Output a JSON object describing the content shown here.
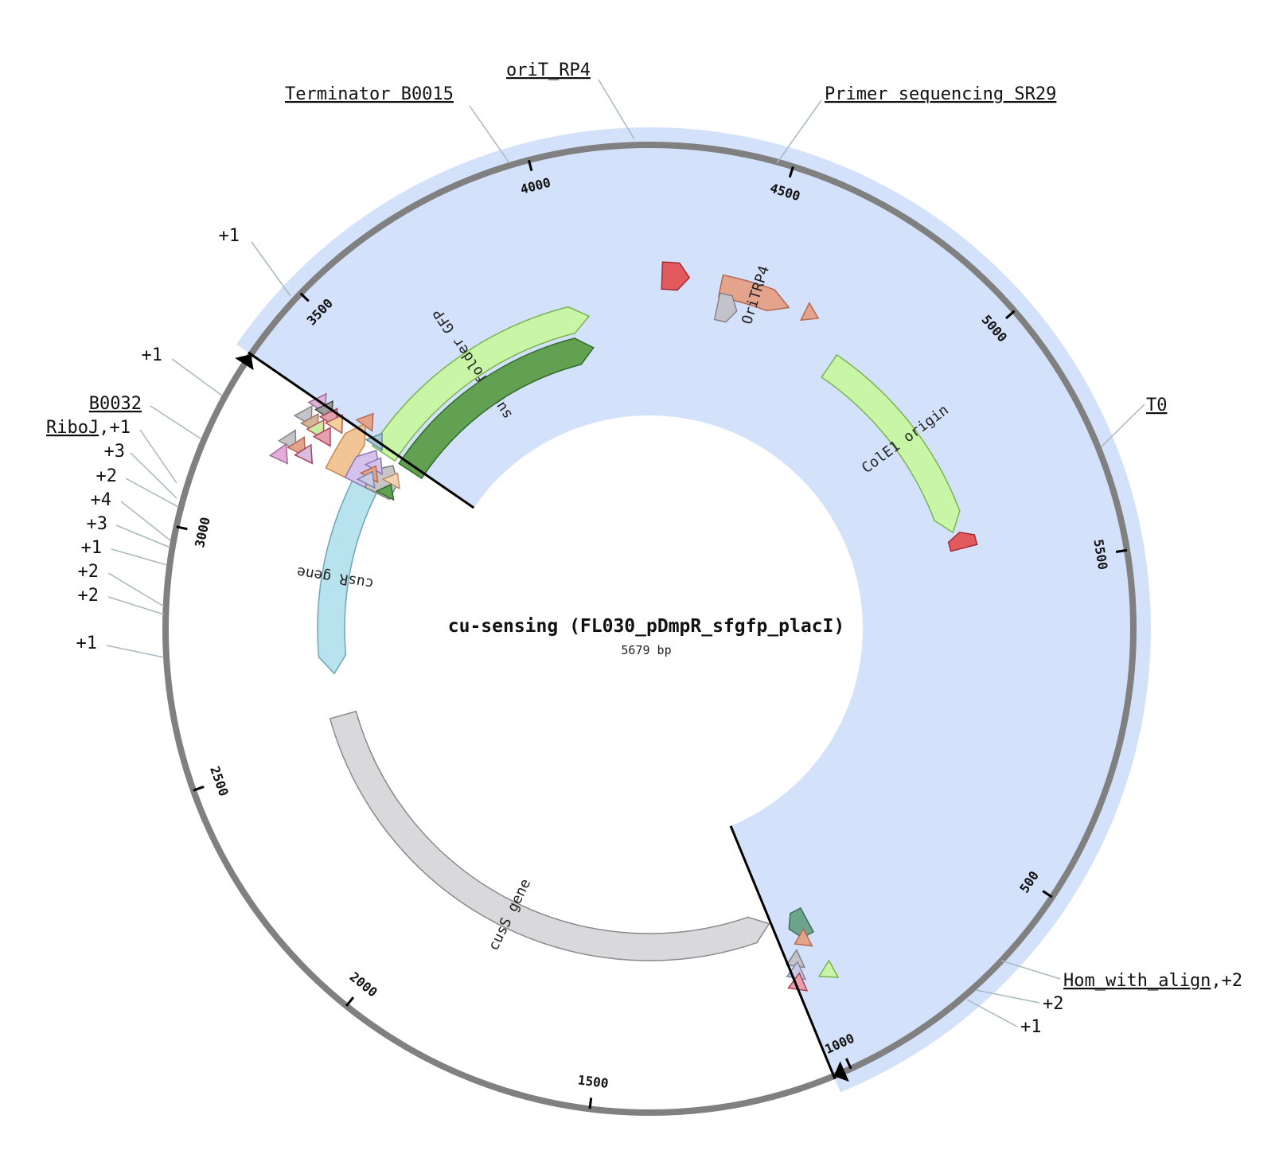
{
  "title": "cu-sensing (FL030_pDmpR_sfgfp_placI)",
  "length_label": "5679 bp",
  "seq_length": 5679,
  "colors": {
    "backbone": "#808080",
    "selection": "#d4e1fa",
    "leader": "#a8b8bd",
    "cut": "#000000"
  },
  "selection": {
    "start": 3353,
    "end": 1035
  },
  "cut_sites": [
    {
      "name": "cut-start",
      "pos": 3353
    },
    {
      "name": "cut-end",
      "pos": 1035
    }
  ],
  "ticks": [
    500,
    1000,
    1500,
    2000,
    2500,
    3000,
    3500,
    4000,
    4500,
    5000,
    5500
  ],
  "features": [
    {
      "name": "cusS gene",
      "start": 1040,
      "end": 2560,
      "track": 1,
      "color": "#d9d9dc",
      "stroke": "#8a8a8e",
      "dir": -1,
      "label": "cusS gene"
    },
    {
      "name": "cusR gene",
      "start": 2680,
      "end": 3225,
      "track": 1,
      "color": "#b8e2ee",
      "stroke": "#6aa7b8",
      "dir": -1,
      "label": "cusR gene"
    },
    {
      "name": "superfolder GFP",
      "start": 3335,
      "end": 4055,
      "track": 1,
      "color": "#c9f6a6",
      "stroke": "#79b454",
      "dir": 1,
      "label": "superfolder GFP"
    },
    {
      "name": "ColE1 origin",
      "start": 4770,
      "end": 5370,
      "track": 1,
      "color": "#c9f6a6",
      "stroke": "#79b454",
      "dir": 1,
      "label": "ColE1 origin"
    },
    {
      "name": "OriTRP4",
      "start": 4413,
      "end": 4598,
      "track": 2,
      "color": "#e4a48c",
      "stroke": "#b46a52",
      "dir": 1,
      "label": "OriTRP4"
    },
    {
      "name": "green block",
      "start": 3335,
      "end": 4050,
      "track": 0,
      "color": "#62a052",
      "stroke": "#2f6b2a",
      "dir": 1,
      "label": ""
    },
    {
      "name": "orange feature",
      "start": 3225,
      "end": 3375,
      "track": 2,
      "color": "#f2c597",
      "stroke": "#c58a4e",
      "dir": 1,
      "label": ""
    },
    {
      "name": "lavender feature",
      "start": 3225,
      "end": 3330,
      "track": 1.25,
      "color": "#d4c2ec",
      "stroke": "#8f76b5",
      "dir": 1,
      "label": ""
    },
    {
      "name": "grey feature",
      "start": 3225,
      "end": 3320,
      "track": 0.55,
      "color": "#c8c5c6",
      "stroke": "#7e7b7c",
      "dir": 1,
      "label": ""
    },
    {
      "name": "red feature left",
      "start": 4260,
      "end": 4330,
      "track": 2.1,
      "color": "#e35a5e",
      "stroke": "#a12a2f",
      "dir": 1,
      "label": ""
    },
    {
      "name": "red feature right",
      "start": 5375,
      "end": 5420,
      "track": 1.2,
      "color": "#e35a5e",
      "stroke": "#a12a2f",
      "dir": -1,
      "label": ""
    },
    {
      "name": "grey small top",
      "start": 4415,
      "end": 4470,
      "track": 1.35,
      "color": "#c5c3ca",
      "stroke": "#85838a",
      "dir": 1,
      "label": ""
    },
    {
      "name": "teal feature",
      "start": 940,
      "end": 995,
      "track": 1.4,
      "color": "#6ea38c",
      "stroke": "#3c6e58",
      "dir": 1,
      "label": ""
    }
  ],
  "small_marks": [
    {
      "pos": 4640,
      "track": 2.1,
      "color": "#e4a48c",
      "stroke": "#b46a52"
    },
    {
      "pos": 3368,
      "track": 2.0,
      "color": "#e4a48c",
      "stroke": "#b46a52"
    },
    {
      "pos": 3340,
      "track": 1.4,
      "color": "#a8c7d3",
      "stroke": "#5f8d9e"
    },
    {
      "pos": 3270,
      "track": 0.3,
      "color": "#f2d2b0",
      "stroke": "#b59070"
    },
    {
      "pos": 3282,
      "track": 1.0,
      "color": "#d4c2ec",
      "stroke": "#8f76b5"
    },
    {
      "pos": 3255,
      "track": 1.0,
      "color": "#e4a48c",
      "stroke": "#b46a52"
    },
    {
      "pos": 3236,
      "track": 1.0,
      "color": "#c9cbe4",
      "stroke": "#7f82a8"
    },
    {
      "pos": 3230,
      "track": 0.3,
      "color": "#62a052",
      "stroke": "#2f6b2a"
    },
    {
      "pos": 3338,
      "track": 3.55,
      "color": "#dcb3d9",
      "stroke": "#9c6b99"
    },
    {
      "pos": 3333,
      "track": 3.25,
      "color": "#9e9e9e",
      "stroke": "#444"
    },
    {
      "pos": 3325,
      "track": 3.0,
      "color": "#e4a0b0",
      "stroke": "#a24455"
    },
    {
      "pos": 3320,
      "track": 2.75,
      "color": "#f2d09a",
      "stroke": "#b5535a"
    },
    {
      "pos": 3297,
      "track": 3.7,
      "color": "#c5c3ca",
      "stroke": "#85838a"
    },
    {
      "pos": 3290,
      "track": 3.4,
      "color": "#d6b49c",
      "stroke": "#9a7a62"
    },
    {
      "pos": 3285,
      "track": 3.15,
      "color": "#c9f0a0",
      "stroke": "#b5535a"
    },
    {
      "pos": 3278,
      "track": 2.85,
      "color": "#e8a0b0",
      "stroke": "#a24455"
    },
    {
      "pos": 3232,
      "track": 3.75,
      "color": "#c5c3ca",
      "stroke": "#85838a"
    },
    {
      "pos": 3228,
      "track": 3.4,
      "color": "#e4a48c",
      "stroke": "#b46a52"
    },
    {
      "pos": 3220,
      "track": 3.1,
      "color": "#d8bde0",
      "stroke": "#a24455"
    },
    {
      "pos": 3195,
      "track": 3.8,
      "color": "#e2aed8",
      "stroke": "#a26a98"
    },
    {
      "pos": 960,
      "track": 1.9,
      "color": "#e4a48c",
      "stroke": "#b46a52"
    },
    {
      "pos": 1000,
      "track": 2.4,
      "color": "#c5c3ca",
      "stroke": "#85838a"
    },
    {
      "pos": 1010,
      "track": 2.75,
      "color": "#c9cbe4",
      "stroke": "#7f82a8"
    },
    {
      "pos": 1017,
      "track": 3.1,
      "color": "#e8a0b0",
      "stroke": "#a24455"
    },
    {
      "pos": 940,
      "track": 3.15,
      "color": "#c9f6a6",
      "stroke": "#79b454"
    }
  ],
  "labels": [
    {
      "text": "Terminator B0015",
      "underline": true,
      "suffix": ""
    },
    {
      "text": "oriT_RP4",
      "underline": true,
      "suffix": ""
    },
    {
      "text": "Primer sequencing SR29",
      "underline": true,
      "suffix": ""
    },
    {
      "text": "T0",
      "underline": true,
      "suffix": ""
    },
    {
      "text": "Hom_with_align",
      "underline": true,
      "suffix": ",+2"
    },
    {
      "text": "+2",
      "underline": false,
      "suffix": ""
    },
    {
      "text": "+1",
      "underline": false,
      "suffix": ""
    },
    {
      "text": "+1",
      "underline": false,
      "suffix": ""
    },
    {
      "text": "+1",
      "underline": false,
      "suffix": ""
    },
    {
      "text": "B0032",
      "underline": true,
      "suffix": ""
    },
    {
      "text": "RiboJ",
      "underline": true,
      "suffix": ",+1"
    },
    {
      "text": "+3",
      "underline": false,
      "suffix": ""
    },
    {
      "text": "+2",
      "underline": false,
      "suffix": ""
    },
    {
      "text": "+4",
      "underline": false,
      "suffix": ""
    },
    {
      "text": "+3",
      "underline": false,
      "suffix": ""
    },
    {
      "text": "+1",
      "underline": false,
      "suffix": ""
    },
    {
      "text": "+2",
      "underline": false,
      "suffix": ""
    },
    {
      "text": "+2",
      "underline": false,
      "suffix": ""
    },
    {
      "text": "+1",
      "underline": false,
      "suffix": ""
    }
  ]
}
